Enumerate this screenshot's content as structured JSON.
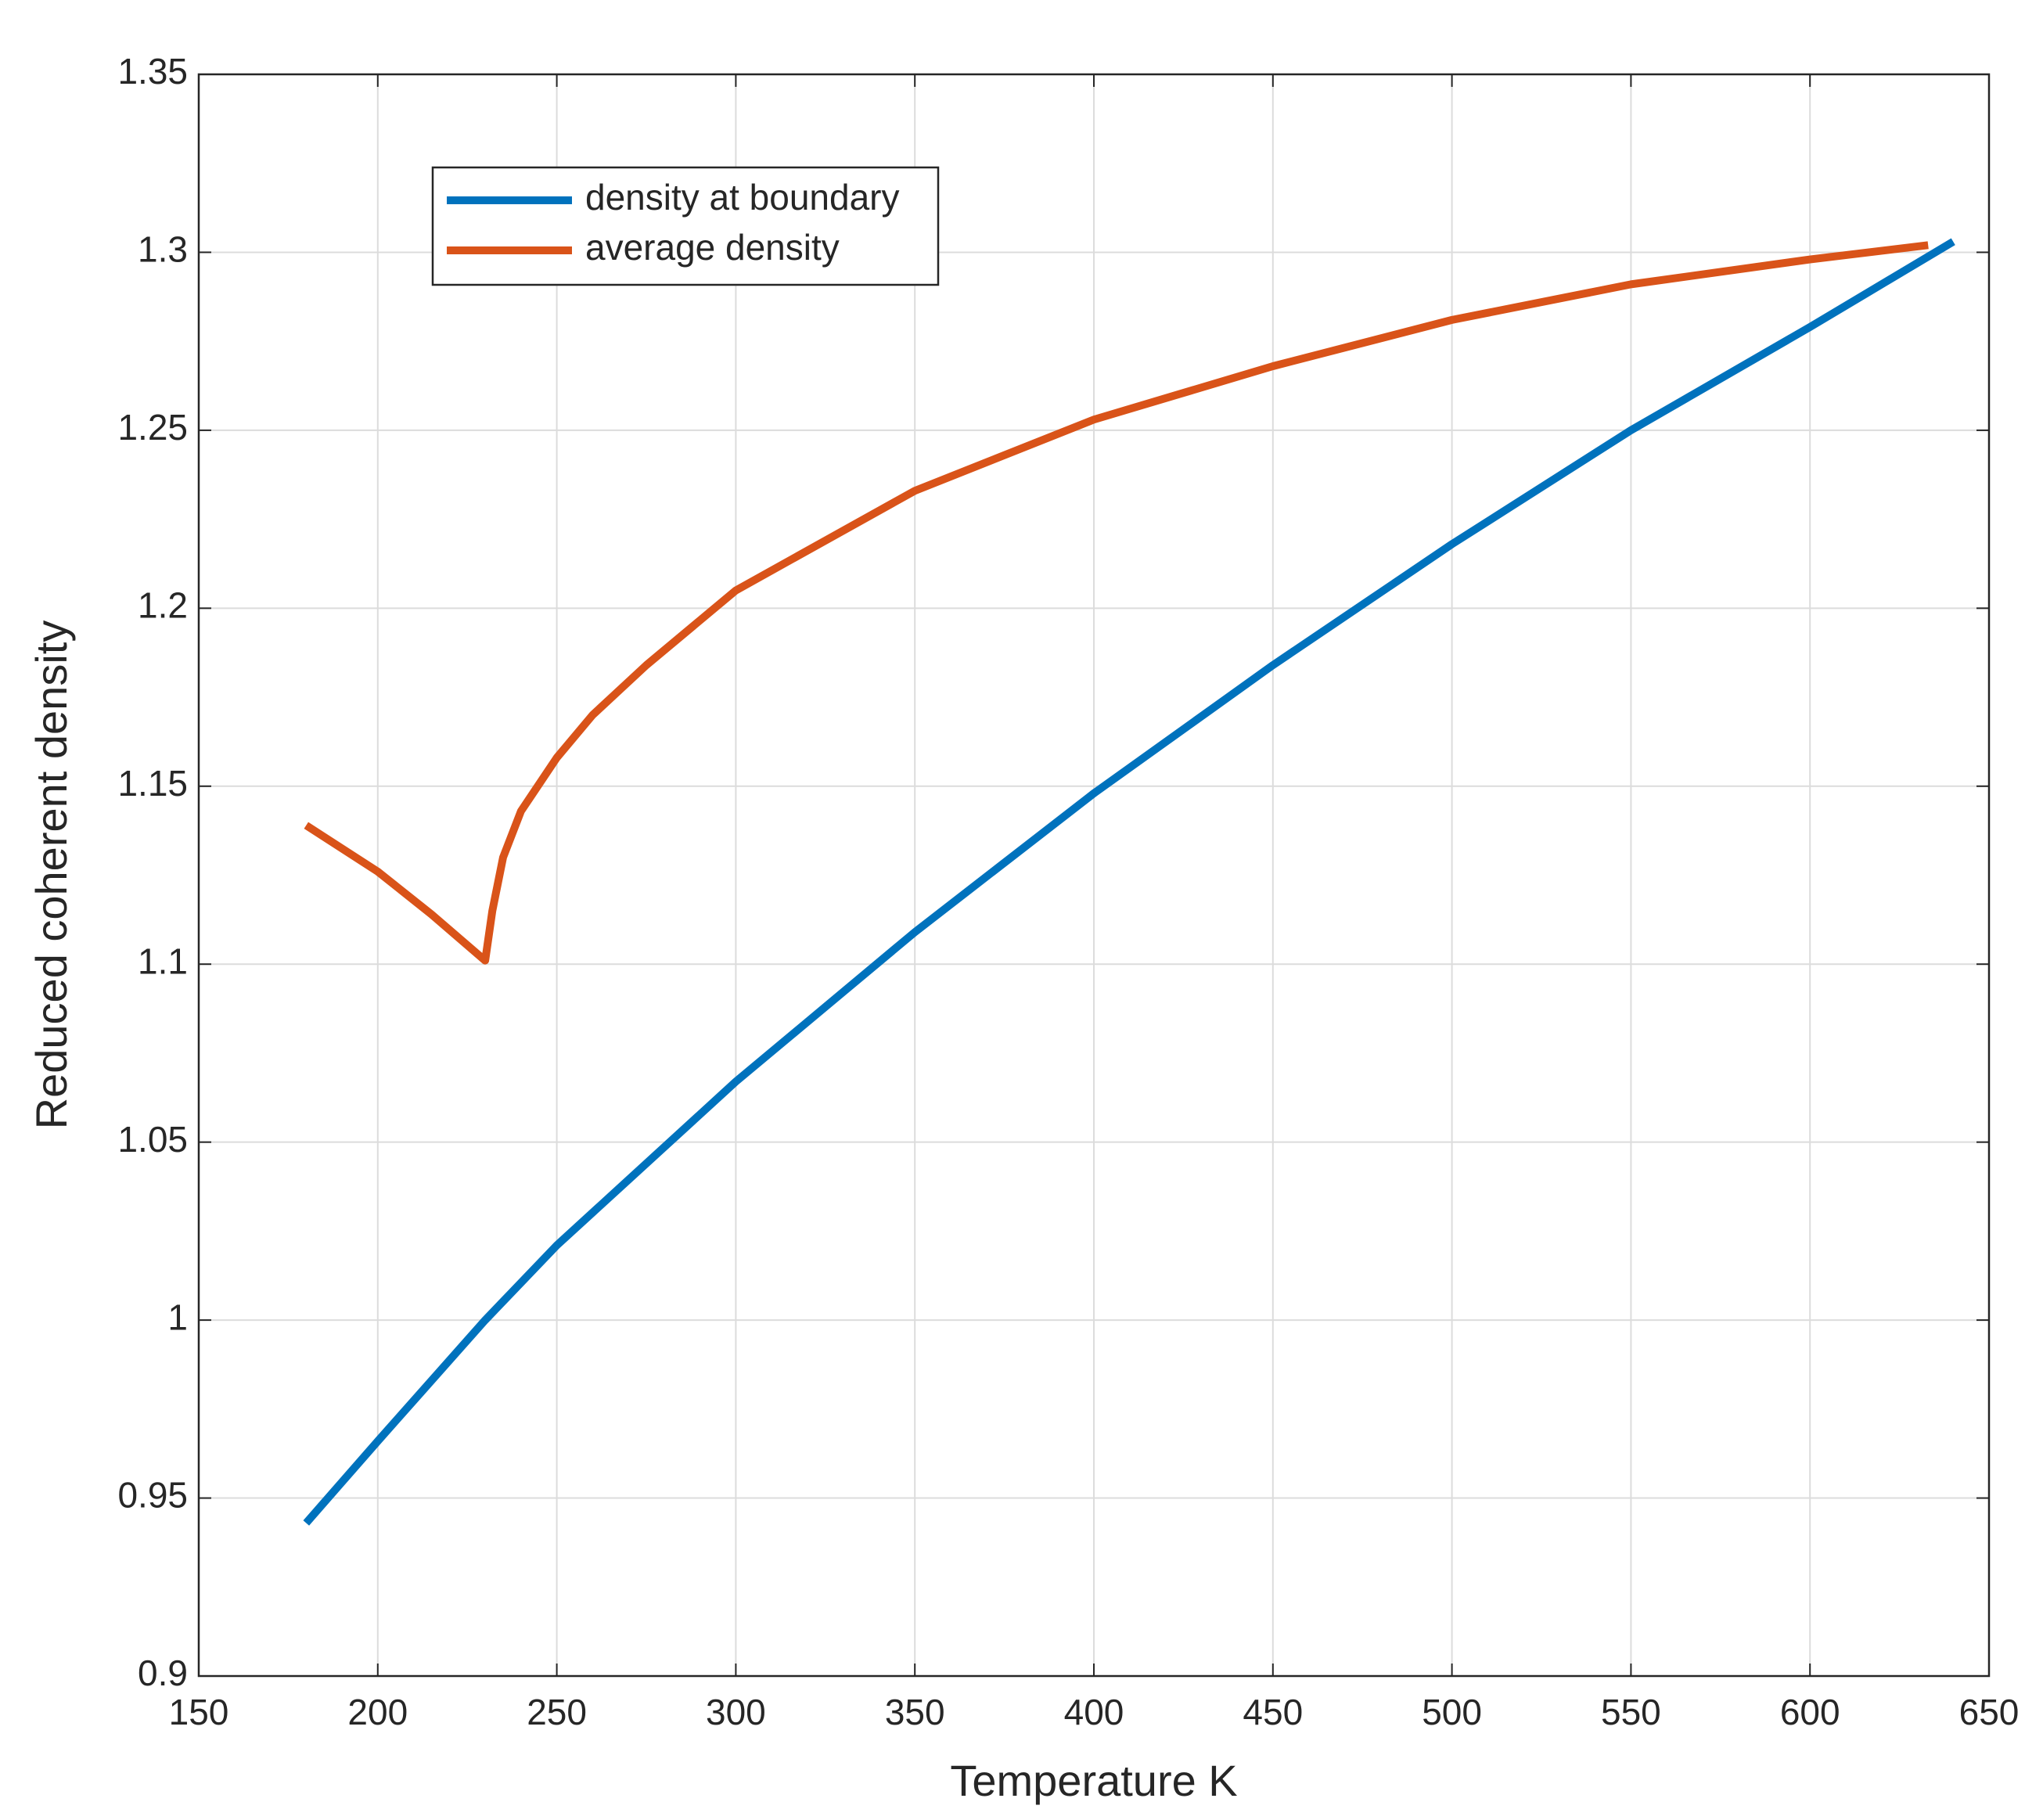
{
  "chart_data": {
    "type": "line",
    "x_label": "Temperature K",
    "y_label": "Reduced coherent density",
    "xlim": [
      150,
      650
    ],
    "xticks": [
      150,
      200,
      250,
      300,
      350,
      400,
      450,
      500,
      550,
      600,
      650
    ],
    "ylim": [
      0.9,
      1.35
    ],
    "yticks": [
      0.9,
      0.95,
      1,
      1.05,
      1.1,
      1.15,
      1.2,
      1.25,
      1.3,
      1.35
    ],
    "grid": true,
    "legend": "upper left",
    "series": [
      {
        "name": "density at boundary",
        "color": "#0072bd",
        "x": [
          180,
          200,
          230,
          250,
          300,
          350,
          400,
          450,
          500,
          550,
          600,
          640
        ],
        "values": [
          0.943,
          0.966,
          1.0,
          1.021,
          1.067,
          1.109,
          1.148,
          1.184,
          1.218,
          1.25,
          1.279,
          1.303
        ]
      },
      {
        "name": "average density",
        "color": "#d95319",
        "x": [
          180,
          200,
          215,
          230,
          232,
          235,
          240,
          250,
          260,
          275,
          300,
          350,
          400,
          450,
          500,
          550,
          600,
          633
        ],
        "values": [
          1.139,
          1.126,
          1.114,
          1.101,
          1.115,
          1.13,
          1.143,
          1.158,
          1.17,
          1.184,
          1.205,
          1.233,
          1.253,
          1.268,
          1.281,
          1.291,
          1.298,
          1.302
        ]
      }
    ]
  }
}
